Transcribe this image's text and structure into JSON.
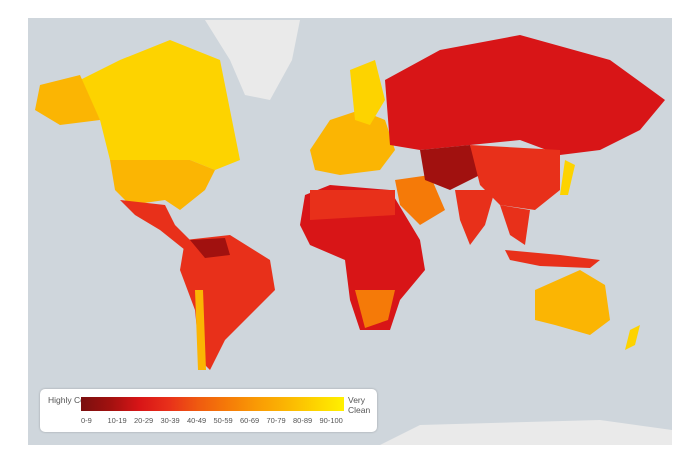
{
  "legend": {
    "low_label": "Highly Corrupt",
    "high_label": "Very Clean",
    "ranges": [
      "0-9",
      "10-19",
      "20-29",
      "30-39",
      "40-49",
      "50-59",
      "60-69",
      "70-79",
      "80-89",
      "90-100"
    ],
    "colors": [
      "#7a0f0f",
      "#a1110f",
      "#d81517",
      "#e8301a",
      "#ef5a10",
      "#f57a08",
      "#f99a05",
      "#fbb503",
      "#fdd300",
      "#fff100"
    ]
  },
  "map": {
    "ocean_color": "#cfd6dc",
    "no_data_color": "#eaeaea"
  }
}
